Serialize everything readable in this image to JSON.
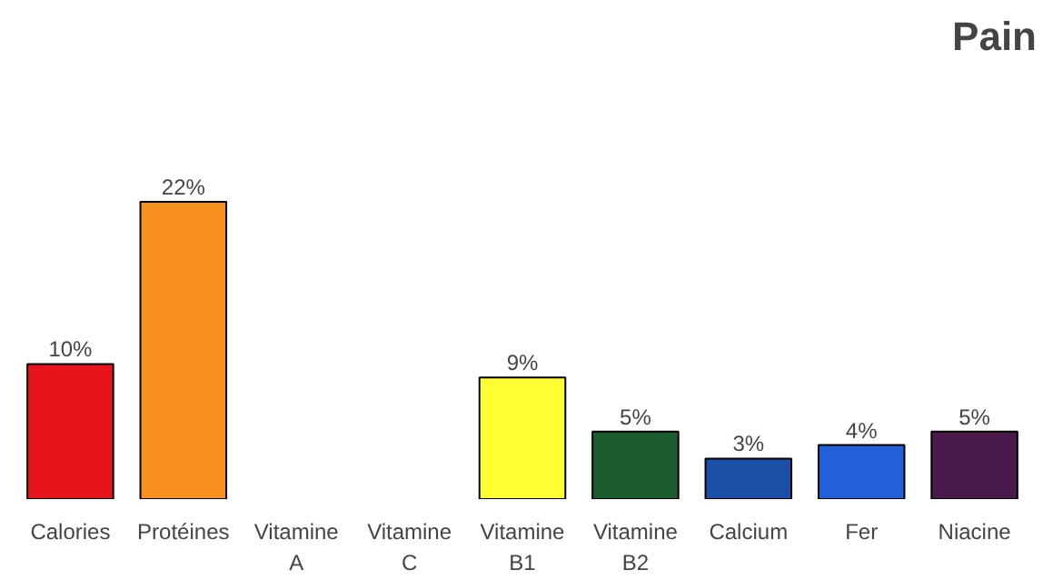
{
  "chart_data": {
    "type": "bar",
    "title": "Pain",
    "categories": [
      "Calories",
      "Protéines",
      "Vitamine\nA",
      "Vitamine\nC",
      "Vitamine\nB1",
      "Vitamine\nB2",
      "Calcium",
      "Fer",
      "Niacine"
    ],
    "values": [
      10,
      22,
      null,
      null,
      9,
      5,
      3,
      4,
      5
    ],
    "value_labels": [
      "10%",
      "22%",
      null,
      null,
      "9%",
      "5%",
      "3%",
      "4%",
      "5%"
    ],
    "colors": [
      "#e8141c",
      "#f7901e",
      null,
      null,
      "#ffff33",
      "#1a5c2e",
      "#1e4fa8",
      "#2260d8",
      "#4a1a4a"
    ],
    "grid": false
  }
}
